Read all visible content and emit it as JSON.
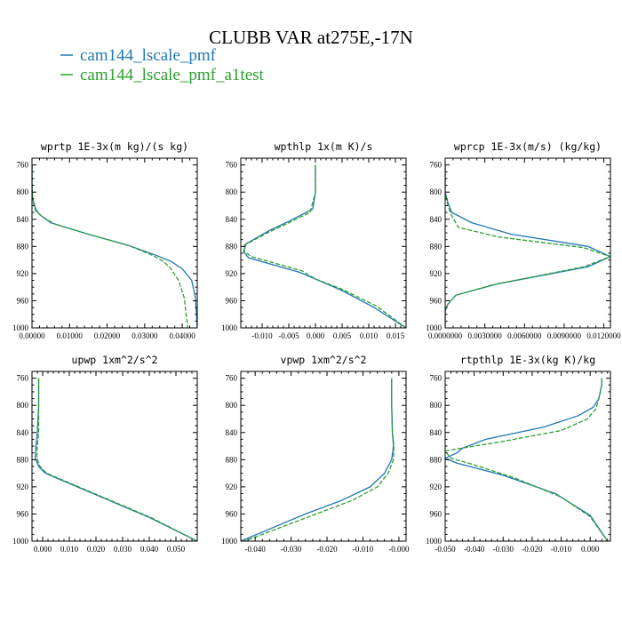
{
  "title": "CLUBB VAR at275E,-17N",
  "legend": [
    {
      "label": "cam144_lscale_pmf",
      "color": "#1f77b4",
      "dash": false
    },
    {
      "label": "cam144_lscale_pmf_a1test",
      "color": "#2ca02c",
      "dash": true
    }
  ],
  "chart_data": [
    {
      "type": "line",
      "title": "wprtp  1E-3x(m kg)/(s kg)",
      "ylim": [
        1000,
        750
      ],
      "yticks": [
        760,
        800,
        840,
        880,
        920,
        960,
        1000
      ],
      "xlim": [
        0,
        0.044
      ],
      "xticks": [
        0,
        0.01,
        0.02,
        0.03,
        0.04
      ],
      "xtick_labels": [
        "0.00000",
        "0.01000",
        "0.02000",
        "0.03000",
        "0.04000"
      ],
      "series": [
        {
          "name": "cam144_lscale_pmf",
          "x": [
            0.0,
            0.0,
            0.0002,
            0.001,
            0.002,
            0.005,
            0.015,
            0.026,
            0.033,
            0.037,
            0.04,
            0.0425,
            0.0435,
            0.044
          ],
          "y": [
            760,
            790,
            810,
            825,
            833,
            845,
            862,
            879,
            893,
            902,
            913,
            930,
            955,
            1000
          ]
        },
        {
          "name": "cam144_lscale_pmf_a1test",
          "x": [
            0.0,
            0.0,
            0.0002,
            0.001,
            0.003,
            0.006,
            0.015,
            0.026,
            0.032,
            0.035,
            0.037,
            0.039,
            0.0405,
            0.0415
          ],
          "y": [
            760,
            790,
            812,
            828,
            837,
            847,
            862,
            879,
            893,
            902,
            913,
            930,
            955,
            1000
          ]
        }
      ]
    },
    {
      "type": "line",
      "title": "wpthlp  1x(m K)/s",
      "ylim": [
        1000,
        750
      ],
      "yticks": [
        760,
        800,
        840,
        880,
        920,
        960,
        1000
      ],
      "xlim": [
        -0.014,
        0.017
      ],
      "xticks": [
        -0.01,
        -0.005,
        0,
        0.005,
        0.01,
        0.015
      ],
      "xtick_labels": [
        "-0.010",
        "-0.005",
        "0.000",
        "0.005",
        "0.010",
        "0.015"
      ],
      "series": [
        {
          "name": "cam144_lscale_pmf",
          "x": [
            0.0,
            0.0,
            -0.0005,
            -0.005,
            -0.0085,
            -0.013,
            -0.0135,
            -0.0125,
            -0.008,
            -0.003,
            0.0,
            0.005,
            0.011,
            0.017
          ],
          "y": [
            760,
            800,
            825,
            843,
            856,
            876,
            888,
            897,
            907,
            918,
            928,
            945,
            970,
            1000
          ]
        },
        {
          "name": "cam144_lscale_pmf_a1test",
          "x": [
            0.0,
            0.0,
            -0.001,
            -0.0055,
            -0.009,
            -0.0133,
            -0.0133,
            -0.012,
            -0.0075,
            -0.0025,
            0.0,
            0.005,
            0.0115,
            0.017
          ],
          "y": [
            760,
            800,
            830,
            847,
            860,
            878,
            888,
            895,
            905,
            916,
            928,
            943,
            968,
            1000
          ]
        }
      ]
    },
    {
      "type": "line",
      "title": "wprcp  1E-3x(m/s) (kg/kg)",
      "ylim": [
        1000,
        750
      ],
      "yticks": [
        760,
        800,
        840,
        880,
        920,
        960,
        1000
      ],
      "xlim": [
        0,
        0.0125
      ],
      "xticks": [
        0,
        0.003,
        0.006,
        0.009,
        0.012
      ],
      "xtick_labels": [
        "0.0000000",
        "0.0030000",
        "0.0060000",
        "0.0090000",
        "0.0120000"
      ],
      "series": [
        {
          "name": "cam144_lscale_pmf",
          "x": [
            0.0,
            0.0,
            0.0002,
            0.0005,
            0.002,
            0.005,
            0.0108,
            0.0125,
            0.0108,
            0.004,
            0.0008,
            0.0002,
            0.0,
            0.0
          ],
          "y": [
            760,
            800,
            815,
            830,
            845,
            862,
            880,
            895,
            910,
            935,
            952,
            965,
            975,
            1000
          ]
        },
        {
          "name": "cam144_lscale_pmf_a1test",
          "x": [
            0.0,
            0.0,
            0.0002,
            0.0005,
            0.001,
            0.004,
            0.0105,
            0.0125,
            0.0105,
            0.0035,
            0.0008,
            0.0002,
            0.0,
            0.0
          ],
          "y": [
            760,
            800,
            820,
            835,
            852,
            866,
            882,
            895,
            910,
            937,
            952,
            965,
            975,
            1000
          ]
        }
      ]
    },
    {
      "type": "line",
      "title": "upwp  1xm^2/s^2",
      "ylim": [
        1000,
        750
      ],
      "yticks": [
        760,
        800,
        840,
        880,
        920,
        960,
        1000
      ],
      "xlim": [
        -0.004,
        0.058
      ],
      "xticks": [
        0,
        0.01,
        0.02,
        0.03,
        0.04,
        0.05
      ],
      "xtick_labels": [
        "0.000",
        "0.010",
        "0.020",
        "0.030",
        "0.040",
        "0.050"
      ],
      "series": [
        {
          "name": "cam144_lscale_pmf",
          "x": [
            -0.0015,
            -0.0015,
            -0.002,
            -0.0025,
            -0.0028,
            -0.0015,
            0.001,
            0.01,
            0.025,
            0.04,
            0.058
          ],
          "y": [
            760,
            800,
            840,
            860,
            877,
            890,
            900,
            915,
            940,
            965,
            1000
          ]
        },
        {
          "name": "cam144_lscale_pmf_a1test",
          "x": [
            -0.0015,
            -0.0015,
            -0.0015,
            -0.002,
            -0.0022,
            -0.001,
            0.0015,
            0.0105,
            0.0255,
            0.0405,
            0.058
          ],
          "y": [
            760,
            800,
            840,
            860,
            877,
            890,
            900,
            915,
            940,
            965,
            1000
          ]
        }
      ]
    },
    {
      "type": "line",
      "title": "vpwp  1xm^2/s^2",
      "ylim": [
        1000,
        750
      ],
      "yticks": [
        760,
        800,
        840,
        880,
        920,
        960,
        1000
      ],
      "xlim": [
        -0.044,
        0.002
      ],
      "xticks": [
        -0.04,
        -0.03,
        -0.02,
        -0.01,
        0
      ],
      "xtick_labels": [
        "-0.040",
        "-0.030",
        "-0.020",
        "-0.010",
        "-0.000"
      ],
      "series": [
        {
          "name": "cam144_lscale_pmf",
          "x": [
            -0.002,
            -0.002,
            -0.0018,
            -0.0015,
            -0.002,
            -0.004,
            -0.008,
            -0.016,
            -0.026,
            -0.035,
            -0.044
          ],
          "y": [
            760,
            800,
            840,
            860,
            880,
            900,
            920,
            940,
            960,
            980,
            1000
          ]
        },
        {
          "name": "cam144_lscale_pmf_a1test",
          "x": [
            -0.002,
            -0.002,
            -0.0018,
            -0.0014,
            -0.0015,
            -0.003,
            -0.006,
            -0.013,
            -0.023,
            -0.033,
            -0.043
          ],
          "y": [
            760,
            800,
            840,
            860,
            880,
            900,
            920,
            940,
            960,
            980,
            1000
          ]
        }
      ]
    },
    {
      "type": "line",
      "title": "rtpthlp  1E-3x(kg K)/kg",
      "ylim": [
        1000,
        750
      ],
      "yticks": [
        760,
        800,
        840,
        880,
        920,
        960,
        1000
      ],
      "xlim": [
        -0.05,
        0.007
      ],
      "xticks": [
        -0.05,
        -0.04,
        -0.03,
        -0.02,
        -0.01,
        0
      ],
      "xtick_labels": [
        "-0.050",
        "-0.040",
        "-0.030",
        "-0.020",
        "-0.010",
        "0.000"
      ],
      "series": [
        {
          "name": "cam144_lscale_pmf",
          "x": [
            0.004,
            0.004,
            0.003,
            0.001,
            -0.004,
            -0.016,
            -0.036,
            -0.044,
            -0.046,
            -0.05,
            -0.046,
            -0.03,
            -0.012,
            0.0,
            0.006
          ],
          "y": [
            760,
            770,
            790,
            803,
            815,
            832,
            850,
            863,
            870,
            878,
            885,
            903,
            930,
            962,
            1000
          ]
        },
        {
          "name": "cam144_lscale_pmf_a1test",
          "x": [
            0.004,
            0.004,
            0.003,
            0.002,
            -0.001,
            -0.01,
            -0.03,
            -0.05,
            -0.048,
            -0.042,
            -0.026,
            -0.01,
            0.0,
            0.006
          ],
          "y": [
            760,
            770,
            790,
            805,
            820,
            837,
            853,
            867,
            878,
            885,
            907,
            935,
            964,
            1000
          ]
        }
      ]
    }
  ]
}
